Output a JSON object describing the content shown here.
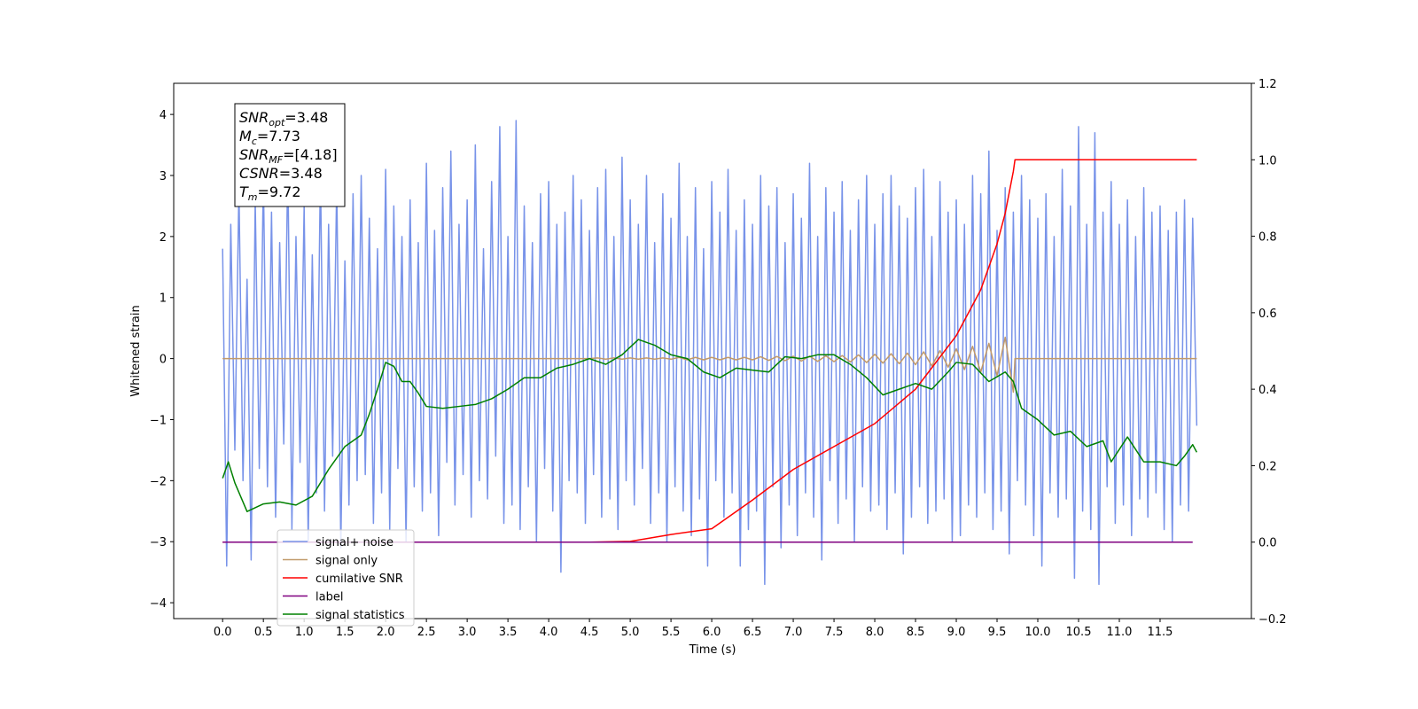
{
  "chart_data": {
    "type": "line",
    "xlabel": "Time (s)",
    "ylabel": "Whitened strain",
    "xlim": [
      -0.6,
      12.62
    ],
    "ylim": [
      -4.26,
      4.51
    ],
    "y2lim": [
      -0.2,
      1.2
    ],
    "xticks": [
      {
        "value": 0,
        "label": "0.0"
      },
      0.5,
      {
        "value": 1,
        "label": "1.0"
      },
      1.5,
      {
        "value": 2,
        "label": "2.0"
      },
      2.5,
      {
        "value": 3,
        "label": "3.0"
      },
      3.5,
      {
        "value": 4,
        "label": "4.0"
      },
      4.5,
      {
        "value": 5,
        "label": "5.0"
      },
      5.5,
      {
        "value": 6,
        "label": "6.0"
      },
      6.5,
      {
        "value": 7,
        "label": "7.0"
      },
      7.5,
      {
        "value": 8,
        "label": "8.0"
      },
      8.5,
      {
        "value": 9,
        "label": "9.0"
      },
      9.5,
      {
        "value": 10,
        "label": "10.0"
      },
      10.5,
      {
        "value": 11,
        "label": "11.0"
      },
      11.5
    ],
    "yticks": [
      {
        "value": -4,
        "label": "−4"
      },
      {
        "value": -3,
        "label": "−3"
      },
      {
        "value": -2,
        "label": "−2"
      },
      {
        "value": -1,
        "label": "−1"
      },
      0,
      1,
      2,
      3,
      4
    ],
    "y2ticks": [
      {
        "value": -0.2,
        "label": "−0.2"
      },
      {
        "value": 0,
        "label": "0.0"
      },
      0.2,
      0.4,
      0.6,
      0.8,
      {
        "value": 1,
        "label": "1.0"
      },
      1.2
    ],
    "grid": false,
    "legend": "lower left",
    "annotation": [
      {
        "base": "SNR",
        "sub": "opt",
        "rest": "=3.48"
      },
      {
        "base": "M",
        "sub": "c",
        "rest": "=7.73"
      },
      {
        "base": "SNR",
        "sub": "MF",
        "rest": "=[4.18]"
      },
      {
        "base": "CSNR",
        "rest": "=3.48"
      },
      {
        "base": "T",
        "sub": "m",
        "rest": "=9.72"
      }
    ],
    "series": [
      {
        "name": "signal+ noise",
        "color": "#7893e9",
        "axis": "y",
        "x": [
          0,
          0.05,
          0.1,
          0.15,
          0.2,
          0.25,
          0.3,
          0.35,
          0.4,
          0.45,
          0.5,
          0.55,
          0.6,
          0.65,
          0.7,
          0.75,
          0.8,
          0.85,
          0.9,
          0.95,
          1,
          1.05,
          1.1,
          1.15,
          1.2,
          1.25,
          1.3,
          1.35,
          1.4,
          1.45,
          1.5,
          1.55,
          1.6,
          1.65,
          1.7,
          1.75,
          1.8,
          1.85,
          1.9,
          1.95,
          2,
          2.05,
          2.1,
          2.15,
          2.2,
          2.25,
          2.3,
          2.35,
          2.4,
          2.45,
          2.5,
          2.55,
          2.6,
          2.65,
          2.7,
          2.75,
          2.8,
          2.85,
          2.9,
          2.95,
          3,
          3.05,
          3.1,
          3.15,
          3.2,
          3.25,
          3.3,
          3.35,
          3.4,
          3.45,
          3.5,
          3.55,
          3.6,
          3.65,
          3.7,
          3.75,
          3.8,
          3.85,
          3.9,
          3.95,
          4,
          4.05,
          4.1,
          4.15,
          4.2,
          4.25,
          4.3,
          4.35,
          4.4,
          4.45,
          4.5,
          4.55,
          4.6,
          4.65,
          4.7,
          4.75,
          4.8,
          4.85,
          4.9,
          4.95,
          5,
          5.05,
          5.1,
          5.15,
          5.2,
          5.25,
          5.3,
          5.35,
          5.4,
          5.45,
          5.5,
          5.55,
          5.6,
          5.65,
          5.7,
          5.75,
          5.8,
          5.85,
          5.9,
          5.95,
          6,
          6.05,
          6.1,
          6.15,
          6.2,
          6.25,
          6.3,
          6.35,
          6.4,
          6.45,
          6.5,
          6.55,
          6.6,
          6.65,
          6.7,
          6.75,
          6.8,
          6.85,
          6.9,
          6.95,
          7,
          7.05,
          7.1,
          7.15,
          7.2,
          7.25,
          7.3,
          7.35,
          7.4,
          7.45,
          7.5,
          7.55,
          7.6,
          7.65,
          7.7,
          7.75,
          7.8,
          7.85,
          7.9,
          7.95,
          8,
          8.05,
          8.1,
          8.15,
          8.2,
          8.25,
          8.3,
          8.35,
          8.4,
          8.45,
          8.5,
          8.55,
          8.6,
          8.65,
          8.7,
          8.75,
          8.8,
          8.85,
          8.9,
          8.95,
          9,
          9.05,
          9.1,
          9.15,
          9.2,
          9.25,
          9.3,
          9.35,
          9.4,
          9.45,
          9.5,
          9.55,
          9.6,
          9.65,
          9.7,
          9.75,
          9.8,
          9.85,
          9.9,
          9.95,
          10,
          10.05,
          10.1,
          10.15,
          10.2,
          10.25,
          10.3,
          10.35,
          10.4,
          10.45,
          10.5,
          10.55,
          10.6,
          10.65,
          10.7,
          10.75,
          10.8,
          10.85,
          10.9,
          10.95,
          11,
          11.05,
          11.1,
          11.15,
          11.2,
          11.25,
          11.3,
          11.35,
          11.4,
          11.45,
          11.5,
          11.55,
          11.6,
          11.65,
          11.7,
          11.75,
          11.8,
          11.85,
          11.9,
          11.95
        ],
        "values": [
          1.8,
          -3.4,
          2.2,
          -1.5,
          2.8,
          -2.0,
          1.3,
          -3.3,
          2.6,
          -1.8,
          3.0,
          -2.1,
          2.4,
          -2.6,
          1.9,
          -1.4,
          3.2,
          -2.8,
          2.0,
          -1.7,
          2.5,
          -3.0,
          1.7,
          -2.2,
          3.1,
          -2.5,
          2.2,
          -1.6,
          2.9,
          -3.1,
          1.6,
          -2.4,
          2.7,
          -2.0,
          3.0,
          -1.9,
          2.3,
          -2.7,
          1.8,
          -2.2,
          3.1,
          -2.8,
          2.5,
          -1.8,
          2.0,
          -3.0,
          2.6,
          -2.1,
          1.9,
          -2.5,
          3.2,
          -2.2,
          2.1,
          -2.9,
          2.8,
          -1.7,
          3.4,
          -2.4,
          2.2,
          -1.9,
          2.6,
          -2.6,
          3.5,
          -2.0,
          1.8,
          -2.3,
          2.9,
          -1.6,
          3.8,
          -2.7,
          2.0,
          -2.4,
          3.9,
          -2.8,
          2.5,
          -2.1,
          1.9,
          -3.0,
          2.7,
          -1.8,
          2.9,
          -2.5,
          2.2,
          -3.5,
          2.4,
          -2.0,
          3.0,
          -2.2,
          2.6,
          -2.7,
          2.1,
          -1.9,
          2.8,
          -2.6,
          3.1,
          -2.3,
          2.0,
          -2.8,
          3.3,
          -2.0,
          2.6,
          -2.4,
          2.2,
          -1.8,
          3.0,
          -2.7,
          1.9,
          -2.2,
          2.7,
          -3.0,
          2.3,
          -2.1,
          3.2,
          -2.5,
          2.0,
          -2.9,
          2.8,
          -2.3,
          1.8,
          -3.4,
          2.9,
          -2.0,
          2.4,
          -2.6,
          3.1,
          -2.2,
          2.1,
          -3.4,
          2.6,
          -2.8,
          2.2,
          -2.5,
          3.0,
          -3.7,
          2.5,
          -2.1,
          2.8,
          -3.1,
          1.9,
          -2.4,
          2.7,
          -2.9,
          2.3,
          -2.2,
          3.2,
          -2.6,
          2.0,
          -3.3,
          2.8,
          -2.0,
          2.4,
          -2.7,
          2.9,
          -2.3,
          2.1,
          -3.0,
          2.6,
          -2.1,
          3.0,
          -2.5,
          2.2,
          -2.4,
          2.7,
          -2.8,
          3.0,
          -2.2,
          2.5,
          -3.2,
          2.3,
          -2.6,
          2.8,
          -2.1,
          3.1,
          -2.7,
          2.0,
          -2.5,
          2.9,
          -2.3,
          2.4,
          -3.0,
          2.6,
          -2.9,
          2.2,
          -2.4,
          3.0,
          -2.6,
          2.7,
          -2.2,
          3.4,
          -2.8,
          2.1,
          -2.5,
          2.8,
          -3.2,
          2.4,
          -2.0,
          3.0,
          -2.4,
          2.6,
          -2.9,
          2.3,
          -3.4,
          2.7,
          -2.2,
          2.0,
          -2.6,
          3.1,
          -2.3,
          2.5,
          -3.6,
          3.8,
          -2.5,
          2.2,
          -2.8,
          3.7,
          -3.7,
          2.4,
          -2.1,
          2.9,
          -2.7,
          2.2,
          -2.4,
          2.6,
          -2.9,
          2.0,
          -2.3,
          2.8,
          -2.6,
          2.4,
          -2.2,
          2.5,
          -2.8,
          2.1,
          -3.0,
          2.4,
          -2.4,
          2.6,
          -2.5,
          2.3,
          -1.1
        ]
      },
      {
        "name": "signal only",
        "color": "#c19a6b",
        "axis": "y",
        "x": [
          0,
          4.5,
          4.6,
          4.7,
          4.8,
          4.9,
          5,
          5.1,
          5.2,
          5.3,
          5.4,
          5.5,
          5.6,
          5.7,
          5.8,
          5.9,
          6,
          6.1,
          6.2,
          6.3,
          6.4,
          6.5,
          6.6,
          6.7,
          6.8,
          6.9,
          7,
          7.1,
          7.2,
          7.3,
          7.4,
          7.5,
          7.6,
          7.7,
          7.8,
          7.9,
          8,
          8.1,
          8.2,
          8.3,
          8.4,
          8.5,
          8.6,
          8.7,
          8.8,
          8.9,
          9,
          9.1,
          9.2,
          9.3,
          9.4,
          9.5,
          9.6,
          9.7,
          9.72,
          11.95
        ],
        "values": [
          0,
          0,
          0.01,
          -0.01,
          0.01,
          -0.01,
          0.01,
          -0.01,
          0.01,
          -0.01,
          0.01,
          -0.01,
          0.02,
          -0.02,
          0.02,
          -0.02,
          0.02,
          -0.02,
          0.02,
          -0.02,
          0.02,
          -0.02,
          0.03,
          -0.03,
          0.035,
          -0.035,
          0.04,
          -0.04,
          0.04,
          -0.045,
          0.045,
          -0.05,
          0.05,
          -0.055,
          0.06,
          -0.065,
          0.07,
          -0.075,
          0.08,
          -0.085,
          0.09,
          -0.1,
          0.11,
          -0.12,
          0.13,
          -0.14,
          0.16,
          -0.18,
          0.2,
          -0.22,
          0.25,
          -0.28,
          0.35,
          -0.55,
          0,
          0
        ]
      },
      {
        "name": "cumilative SNR",
        "color": "#ff0000",
        "axis": "y2",
        "x": [
          0,
          4.5,
          5.0,
          5.5,
          6.0,
          6.5,
          7.0,
          7.5,
          8.0,
          8.5,
          9.0,
          9.3,
          9.5,
          9.6,
          9.7,
          9.72,
          11.95
        ],
        "values": [
          0,
          0,
          0.002,
          0.02,
          0.035,
          0.11,
          0.19,
          0.25,
          0.31,
          0.4,
          0.54,
          0.66,
          0.78,
          0.86,
          0.97,
          1.0,
          1.0
        ]
      },
      {
        "name": "label",
        "color": "#800080",
        "axis": "y2",
        "x": [
          0,
          11.9
        ],
        "values": [
          0,
          0
        ]
      },
      {
        "name": "signal statistics",
        "color": "#008000",
        "axis": "y2",
        "x": [
          0,
          0.07,
          0.15,
          0.3,
          0.5,
          0.7,
          0.9,
          1.1,
          1.3,
          1.5,
          1.7,
          1.8,
          1.9,
          2.0,
          2.1,
          2.2,
          2.3,
          2.4,
          2.5,
          2.7,
          2.9,
          3.1,
          3.3,
          3.5,
          3.7,
          3.9,
          4.1,
          4.3,
          4.5,
          4.7,
          4.9,
          5.1,
          5.3,
          5.5,
          5.7,
          5.9,
          6.1,
          6.3,
          6.5,
          6.7,
          6.9,
          7.1,
          7.3,
          7.5,
          7.7,
          7.9,
          8.1,
          8.3,
          8.5,
          8.7,
          8.9,
          9.0,
          9.2,
          9.4,
          9.6,
          9.7,
          9.8,
          10.0,
          10.2,
          10.4,
          10.6,
          10.8,
          10.9,
          11.1,
          11.3,
          11.5,
          11.7,
          11.8,
          11.9,
          11.95
        ],
        "values": [
          0.167,
          0.21,
          0.155,
          0.08,
          0.1,
          0.105,
          0.097,
          0.12,
          0.19,
          0.25,
          0.28,
          0.335,
          0.4,
          0.47,
          0.46,
          0.42,
          0.42,
          0.39,
          0.355,
          0.35,
          0.355,
          0.36,
          0.375,
          0.4,
          0.43,
          0.43,
          0.455,
          0.465,
          0.48,
          0.465,
          0.49,
          0.53,
          0.515,
          0.49,
          0.48,
          0.445,
          0.43,
          0.455,
          0.45,
          0.445,
          0.485,
          0.48,
          0.49,
          0.49,
          0.465,
          0.43,
          0.385,
          0.4,
          0.415,
          0.4,
          0.445,
          0.47,
          0.465,
          0.42,
          0.445,
          0.42,
          0.35,
          0.32,
          0.28,
          0.29,
          0.25,
          0.265,
          0.21,
          0.275,
          0.21,
          0.21,
          0.2,
          0.225,
          0.255,
          0.235
        ]
      }
    ]
  }
}
